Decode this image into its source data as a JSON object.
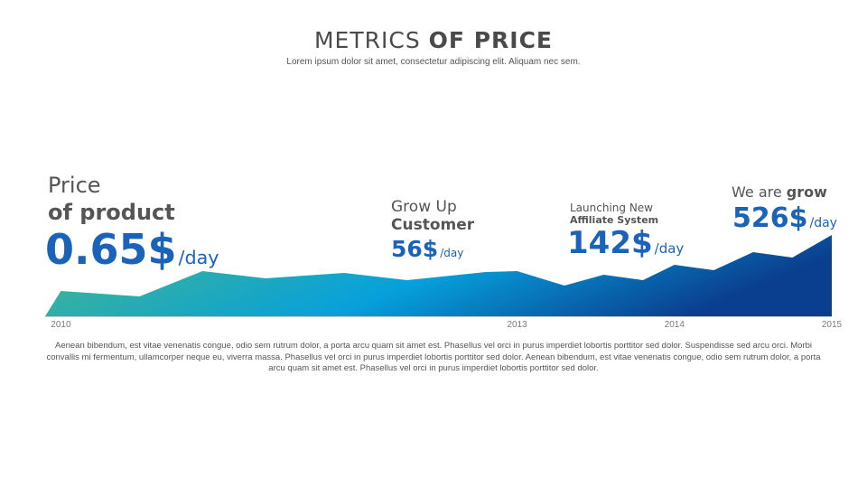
{
  "header": {
    "title_light": "METRICS",
    "title_bold": "OF PRICE",
    "subtitle": "Lorem ipsum dolor sit amet, consectetur adipiscing elit. Aliquam nec sem."
  },
  "callouts": [
    {
      "line1": "Price",
      "line2": "of product",
      "value": "0.65$",
      "unit": "/day"
    },
    {
      "line1": "Grow Up",
      "line2": "Customer",
      "value": "56$",
      "unit": "/day"
    },
    {
      "line1": "Launching New",
      "line2": "Affiliate System",
      "value": "142$",
      "unit": "/day"
    },
    {
      "line1": "We are",
      "line1_bold": "grow",
      "value": "526$",
      "unit": "/day"
    }
  ],
  "chart_data": {
    "type": "area",
    "title": "",
    "xlabel": "",
    "ylabel": "",
    "x": [
      2010.0,
      2010.1,
      2010.6,
      2011.0,
      2011.4,
      2011.9,
      2012.3,
      2012.8,
      2013.0,
      2013.3,
      2013.55,
      2013.8,
      2014.0,
      2014.25,
      2014.5,
      2014.75,
      2015.0
    ],
    "values": [
      0,
      28,
      22,
      50,
      42,
      48,
      40,
      49,
      50,
      34,
      46,
      40,
      57,
      51,
      71,
      65,
      90
    ],
    "xlim": [
      2010.0,
      2015.0
    ],
    "ylim": [
      0,
      90
    ],
    "ticks": [
      {
        "x": 2010.1,
        "label": "2010"
      },
      {
        "x": 2013.0,
        "label": "2013"
      },
      {
        "x": 2014.0,
        "label": "2014"
      },
      {
        "x": 2015.0,
        "label": "2015"
      }
    ],
    "gradient": [
      "#4cb886",
      "#06a0dc",
      "#0a3f8f"
    ],
    "axis_color": "#cfcfcf",
    "grid": false
  },
  "paragraph": "Aenean bibendum, est vitae venenatis congue, odio sem rutrum dolor, a porta arcu quam sit amet est. Phasellus vel orci in purus imperdiet lobortis porttitor sed dolor. Suspendisse sed arcu orci. Morbi convallis mi fermentum, ullamcorper neque eu, viverra massa. Phasellus vel orci in purus imperdiet lobortis porttitor sed dolor. Aenean bibendum, est vitae venenatis congue, odio sem rutrum dolor, a porta arcu quam sit amet est. Phasellus vel orci in purus imperdiet lobortis porttitor sed dolor."
}
